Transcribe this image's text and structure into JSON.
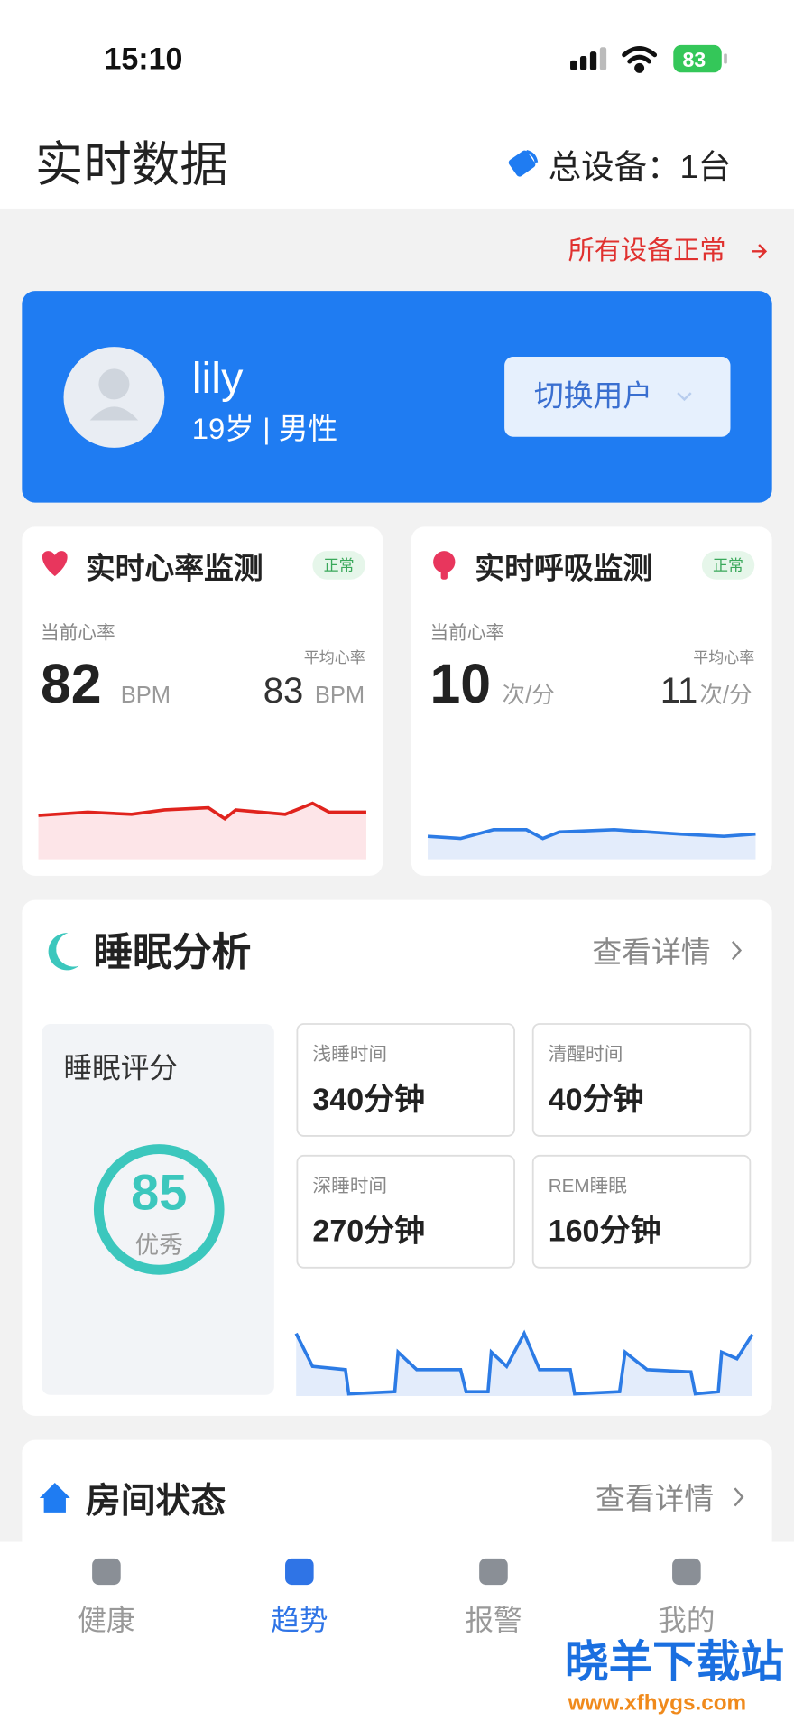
{
  "status": {
    "time": "15:10",
    "battery": 83
  },
  "header": {
    "title": "实时数据",
    "devices": "总设备：1台"
  },
  "status_link": "所有设备正常",
  "user": {
    "name": "lily",
    "info": "19岁 | 男性",
    "switch": "切换用户"
  },
  "heart": {
    "title": "实时心率监测",
    "badge": "正常",
    "current_label": "当前心率",
    "current": 82,
    "unit": "BPM",
    "avg_label": "平均心率",
    "avg": 83,
    "avg_unit": "BPM"
  },
  "breath": {
    "title": "实时呼吸监测",
    "badge": "正常",
    "current_label": "当前心率",
    "current": 10,
    "unit": "次/分",
    "avg_label": "平均心率",
    "avg": 11,
    "avg_unit": "次/分"
  },
  "sleep": {
    "title": "睡眠分析",
    "more": "查看详情",
    "score_label": "睡眠评分",
    "score": 85,
    "grade": "优秀",
    "stats": [
      {
        "label": "浅睡时间",
        "value": "340分钟"
      },
      {
        "label": "清醒时间",
        "value": "40分钟"
      },
      {
        "label": "深睡时间",
        "value": "270分钟"
      },
      {
        "label": "REM睡眠",
        "value": "160分钟"
      }
    ]
  },
  "room": {
    "title": "房间状态",
    "more": "查看详情"
  },
  "tabs": [
    "健康",
    "趋势",
    "报警",
    "我的"
  ],
  "watermark": {
    "text": "晓羊下载站",
    "url": "www.xfhygs.com"
  }
}
